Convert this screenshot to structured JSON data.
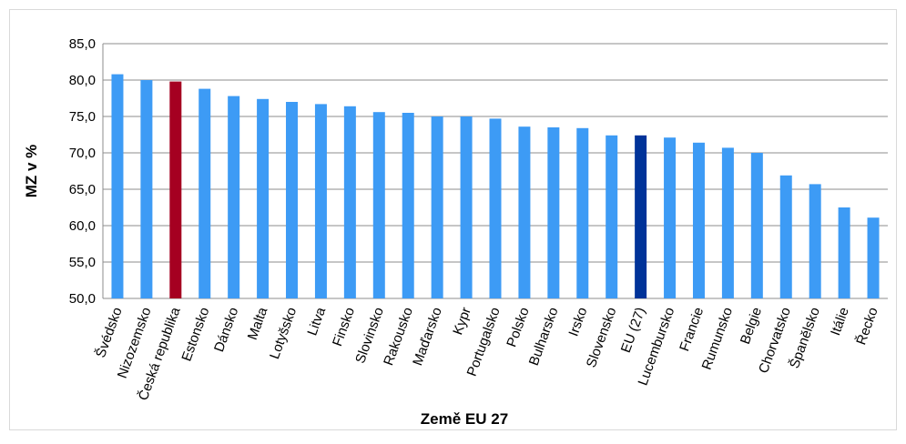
{
  "chart_data": {
    "type": "bar",
    "categories": [
      "Švédsko",
      "Nizozemsko",
      "Česká republika",
      "Estonsko",
      "Dánsko",
      "Malta",
      "Lotyšsko",
      "Litva",
      "Finsko",
      "Slovinsko",
      "Rakousko",
      "Maďarsko",
      "Kypr",
      "Portugalsko",
      "Polsko",
      "Bulharsko",
      "Irsko",
      "Slovensko",
      "EU (27)",
      "Lucembursko",
      "Francie",
      "Rumunsko",
      "Belgie",
      "Chorvatsko",
      "Španělsko",
      "Itálie",
      "Řecko"
    ],
    "values": [
      80.8,
      80.0,
      79.8,
      78.8,
      77.8,
      77.4,
      77.0,
      76.7,
      76.4,
      75.6,
      75.5,
      75.0,
      75.0,
      74.7,
      73.6,
      73.5,
      73.4,
      72.4,
      72.4,
      72.1,
      71.4,
      70.7,
      70.0,
      66.9,
      65.7,
      62.5,
      61.1
    ],
    "colors": [
      "#3d9bf5",
      "#3d9bf5",
      "#a50021",
      "#3d9bf5",
      "#3d9bf5",
      "#3d9bf5",
      "#3d9bf5",
      "#3d9bf5",
      "#3d9bf5",
      "#3d9bf5",
      "#3d9bf5",
      "#3d9bf5",
      "#3d9bf5",
      "#3d9bf5",
      "#3d9bf5",
      "#3d9bf5",
      "#3d9bf5",
      "#3d9bf5",
      "#003399",
      "#3d9bf5",
      "#3d9bf5",
      "#3d9bf5",
      "#3d9bf5",
      "#3d9bf5",
      "#3d9bf5",
      "#3d9bf5",
      "#3d9bf5"
    ],
    "ylabel": "MZ v %",
    "xlabel": "Země EU 27",
    "ylim": [
      50,
      85
    ],
    "yticks": [
      {
        "value": 50,
        "label": "50,0"
      },
      {
        "value": 55,
        "label": "55,0"
      },
      {
        "value": 60,
        "label": "60,0"
      },
      {
        "value": 65,
        "label": "65,0"
      },
      {
        "value": 70,
        "label": "70,0"
      },
      {
        "value": 75,
        "label": "75,0"
      },
      {
        "value": 80,
        "label": "80,0"
      },
      {
        "value": 85,
        "label": "85,0"
      }
    ],
    "grid": true
  }
}
